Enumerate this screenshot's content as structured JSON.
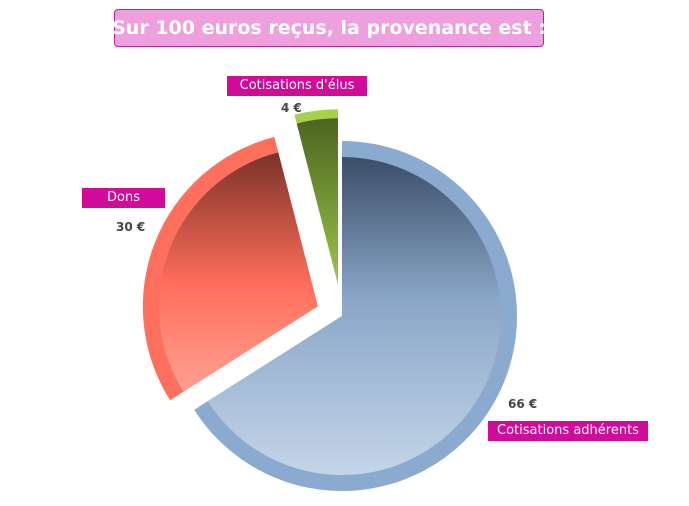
{
  "chart_data": {
    "type": "pie",
    "title": "Sur 100 euros reçus, la provenance est :",
    "slices": [
      {
        "label": "Cotisations adhérents",
        "value": 66,
        "value_label": "66 €",
        "color": "#8aabcf"
      },
      {
        "label": "Dons",
        "value": 30,
        "value_label": "30 €",
        "color": "#ff6f5e"
      },
      {
        "label": "Cotisations d'élus",
        "value": 4,
        "value_label": "4 €",
        "color": "#a5d14e"
      }
    ]
  }
}
